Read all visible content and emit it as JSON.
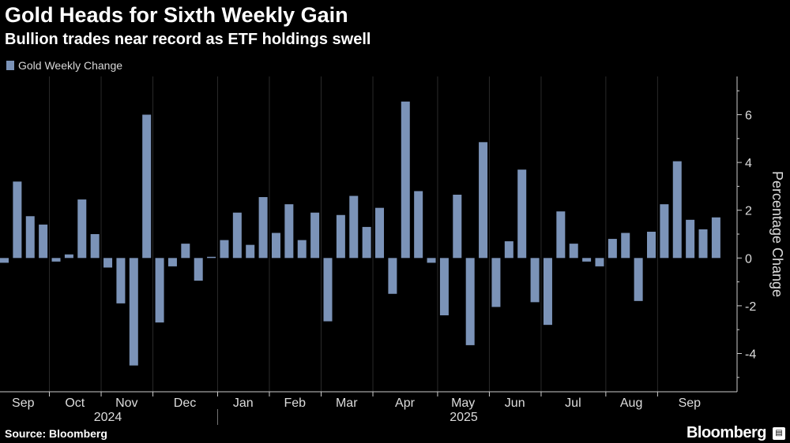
{
  "header": {
    "title": "Gold Heads for Sixth Weekly Gain",
    "subtitle": "Bullion trades near record as ETF holdings swell"
  },
  "footer": {
    "source": "Source: Bloomberg",
    "brand": "Bloomberg"
  },
  "colors": {
    "background": "#000000",
    "bar": "#7b93b8",
    "axis": "#cccccc",
    "grid": "#2a2a2a"
  },
  "chart_data": {
    "type": "bar",
    "title": "Gold Heads for Sixth Weekly Gain",
    "subtitle": "Bullion trades near record as ETF holdings swell",
    "legend": [
      "Gold Weekly Change"
    ],
    "legend_position": "top-left",
    "ylabel": "Percentage Change",
    "ylim": [
      -5.6,
      7.6
    ],
    "yticks": [
      -4,
      -2,
      0,
      2,
      4,
      6
    ],
    "ytick_labels": [
      "-4",
      "-2",
      "0",
      "2",
      "4",
      "6"
    ],
    "grid": "vertical month separators",
    "month_labels": [
      "Sep",
      "Oct",
      "Nov",
      "Dec",
      "Jan",
      "Feb",
      "Mar",
      "Apr",
      "May",
      "Jun",
      "Jul",
      "Aug",
      "Sep"
    ],
    "month_start_index": [
      0,
      4,
      8,
      12,
      17,
      21,
      25,
      29,
      34,
      38,
      42,
      47,
      51
    ],
    "year_labels": [
      {
        "label": "2024",
        "start_index": 0,
        "end_index": 16
      },
      {
        "label": "2025",
        "start_index": 17,
        "end_index": 54
      }
    ],
    "series": [
      {
        "name": "Gold Weekly Change",
        "values": [
          -0.2,
          3.2,
          1.75,
          1.4,
          -0.15,
          0.15,
          2.45,
          1.0,
          -0.4,
          -1.9,
          -4.5,
          6.0,
          -2.7,
          -0.35,
          0.6,
          -0.95,
          0.05,
          0.75,
          1.9,
          0.55,
          2.55,
          1.05,
          2.25,
          0.75,
          1.9,
          -2.65,
          1.8,
          2.6,
          1.3,
          2.1,
          -1.5,
          6.55,
          2.8,
          -0.2,
          -2.4,
          2.65,
          -3.65,
          4.85,
          -2.05,
          0.7,
          3.7,
          -1.85,
          -2.8,
          1.95,
          0.6,
          -0.15,
          -0.35,
          0.8,
          1.05,
          -1.8,
          1.1,
          2.25,
          4.05,
          1.6,
          1.2,
          1.7
        ]
      }
    ]
  }
}
